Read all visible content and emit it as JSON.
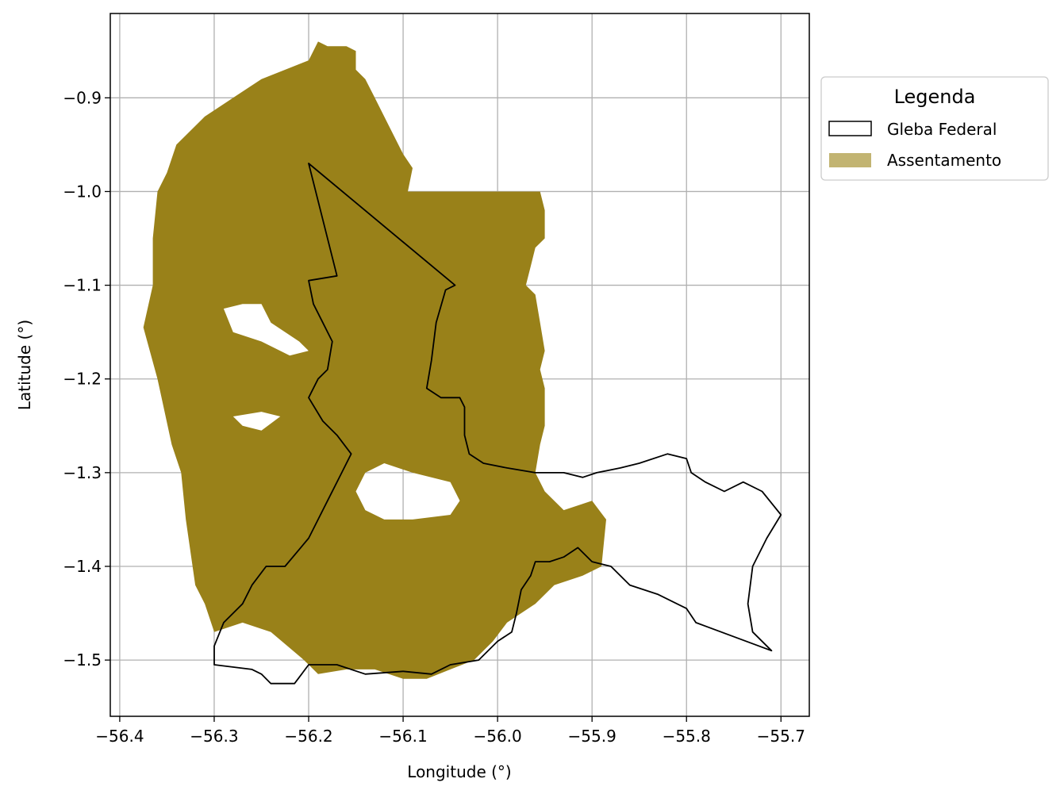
{
  "chart_data": {
    "type": "map",
    "title": "",
    "xlabel": "Longitude (°)",
    "ylabel": "Latitude (°)",
    "xlim": [
      -56.41,
      -55.67
    ],
    "ylim": [
      -1.56,
      -0.81
    ],
    "grid": true,
    "x_ticks": [
      -56.4,
      -56.3,
      -56.2,
      -56.1,
      -56.0,
      -55.9,
      -55.8,
      -55.7
    ],
    "x_tick_labels": [
      "−56.4",
      "−56.3",
      "−56.2",
      "−56.1",
      "−56.0",
      "−55.9",
      "−55.8",
      "−55.7"
    ],
    "y_ticks": [
      -0.9,
      -1.0,
      -1.1,
      -1.2,
      -1.3,
      -1.4,
      -1.5
    ],
    "y_tick_labels": [
      "−0.9",
      "−1.0",
      "−1.1",
      "−1.2",
      "−1.3",
      "−1.4",
      "−1.5"
    ],
    "legend": {
      "title": "Legenda",
      "placement": "outside-upper-right",
      "entries": [
        {
          "label": "Gleba Federal",
          "style": "outline",
          "color": "#000000"
        },
        {
          "label": "Assentamento",
          "style": "fill",
          "color": "#c2b472"
        }
      ]
    },
    "colors": {
      "assentamento_fill": "#998119",
      "gleba_outline": "#000000"
    },
    "layers": {
      "assentamento": [
        [
          [
            -56.19,
            -0.84
          ],
          [
            -56.18,
            -0.845
          ],
          [
            -56.16,
            -0.845
          ],
          [
            -56.15,
            -0.85
          ],
          [
            -56.15,
            -0.87
          ],
          [
            -56.14,
            -0.88
          ],
          [
            -56.13,
            -0.9
          ],
          [
            -56.115,
            -0.93
          ],
          [
            -56.1,
            -0.96
          ],
          [
            -56.09,
            -0.975
          ],
          [
            -56.095,
            -1.0
          ],
          [
            -55.955,
            -1.0
          ],
          [
            -55.95,
            -1.02
          ],
          [
            -55.95,
            -1.05
          ],
          [
            -55.96,
            -1.06
          ],
          [
            -55.965,
            -1.08
          ],
          [
            -55.97,
            -1.1
          ],
          [
            -55.96,
            -1.11
          ],
          [
            -55.955,
            -1.14
          ],
          [
            -55.95,
            -1.17
          ],
          [
            -55.955,
            -1.19
          ],
          [
            -55.95,
            -1.21
          ],
          [
            -55.95,
            -1.25
          ],
          [
            -55.955,
            -1.27
          ],
          [
            -55.96,
            -1.3
          ],
          [
            -55.95,
            -1.32
          ],
          [
            -55.93,
            -1.34
          ],
          [
            -55.9,
            -1.33
          ],
          [
            -55.885,
            -1.35
          ],
          [
            -55.89,
            -1.4
          ],
          [
            -55.91,
            -1.41
          ],
          [
            -55.94,
            -1.42
          ],
          [
            -55.96,
            -1.44
          ],
          [
            -55.99,
            -1.46
          ],
          [
            -56.005,
            -1.48
          ],
          [
            -56.025,
            -1.5
          ],
          [
            -56.05,
            -1.51
          ],
          [
            -56.075,
            -1.52
          ],
          [
            -56.1,
            -1.52
          ],
          [
            -56.13,
            -1.51
          ],
          [
            -56.16,
            -1.51
          ],
          [
            -56.19,
            -1.515
          ],
          [
            -56.205,
            -1.5
          ],
          [
            -56.24,
            -1.47
          ],
          [
            -56.27,
            -1.46
          ],
          [
            -56.3,
            -1.47
          ],
          [
            -56.31,
            -1.44
          ],
          [
            -56.32,
            -1.42
          ],
          [
            -56.33,
            -1.35
          ],
          [
            -56.335,
            -1.3
          ],
          [
            -56.345,
            -1.27
          ],
          [
            -56.36,
            -1.2
          ],
          [
            -56.375,
            -1.145
          ],
          [
            -56.365,
            -1.1
          ],
          [
            -56.365,
            -1.05
          ],
          [
            -56.36,
            -1.0
          ],
          [
            -56.35,
            -0.98
          ],
          [
            -56.34,
            -0.95
          ],
          [
            -56.31,
            -0.92
          ],
          [
            -56.28,
            -0.9
          ],
          [
            -56.25,
            -0.88
          ],
          [
            -56.2,
            -0.86
          ]
        ]
      ],
      "assentamento_holes": [
        [
          [
            -56.29,
            -1.125
          ],
          [
            -56.27,
            -1.12
          ],
          [
            -56.25,
            -1.12
          ],
          [
            -56.24,
            -1.14
          ],
          [
            -56.21,
            -1.16
          ],
          [
            -56.2,
            -1.17
          ],
          [
            -56.22,
            -1.175
          ],
          [
            -56.25,
            -1.16
          ],
          [
            -56.28,
            -1.15
          ]
        ],
        [
          [
            -56.15,
            -1.32
          ],
          [
            -56.14,
            -1.3
          ],
          [
            -56.12,
            -1.29
          ],
          [
            -56.09,
            -1.3
          ],
          [
            -56.05,
            -1.31
          ],
          [
            -56.04,
            -1.33
          ],
          [
            -56.05,
            -1.345
          ],
          [
            -56.09,
            -1.35
          ],
          [
            -56.12,
            -1.35
          ],
          [
            -56.14,
            -1.34
          ]
        ],
        [
          [
            -56.28,
            -1.24
          ],
          [
            -56.25,
            -1.235
          ],
          [
            -56.23,
            -1.24
          ],
          [
            -56.25,
            -1.255
          ],
          [
            -56.27,
            -1.25
          ]
        ]
      ],
      "gleba_federal": [
        [
          [
            -56.2,
            -0.97
          ],
          [
            -56.045,
            -1.1
          ],
          [
            -56.055,
            -1.105
          ],
          [
            -56.065,
            -1.14
          ],
          [
            -56.07,
            -1.18
          ],
          [
            -56.075,
            -1.21
          ],
          [
            -56.06,
            -1.22
          ],
          [
            -56.04,
            -1.22
          ],
          [
            -56.035,
            -1.23
          ],
          [
            -56.035,
            -1.26
          ],
          [
            -56.03,
            -1.28
          ],
          [
            -56.015,
            -1.29
          ],
          [
            -55.99,
            -1.295
          ],
          [
            -55.96,
            -1.3
          ],
          [
            -55.93,
            -1.3
          ],
          [
            -55.91,
            -1.305
          ],
          [
            -55.895,
            -1.3
          ],
          [
            -55.87,
            -1.295
          ],
          [
            -55.85,
            -1.29
          ],
          [
            -55.82,
            -1.28
          ],
          [
            -55.8,
            -1.285
          ],
          [
            -55.795,
            -1.3
          ],
          [
            -55.78,
            -1.31
          ],
          [
            -55.76,
            -1.32
          ],
          [
            -55.74,
            -1.31
          ],
          [
            -55.72,
            -1.32
          ],
          [
            -55.7,
            -1.345
          ],
          [
            -55.715,
            -1.37
          ],
          [
            -55.73,
            -1.4
          ],
          [
            -55.735,
            -1.44
          ],
          [
            -55.73,
            -1.47
          ],
          [
            -55.71,
            -1.49
          ],
          [
            -55.79,
            -1.46
          ],
          [
            -55.8,
            -1.445
          ],
          [
            -55.83,
            -1.43
          ],
          [
            -55.86,
            -1.42
          ],
          [
            -55.88,
            -1.4
          ],
          [
            -55.9,
            -1.395
          ],
          [
            -55.915,
            -1.38
          ],
          [
            -55.93,
            -1.39
          ],
          [
            -55.945,
            -1.395
          ],
          [
            -55.96,
            -1.395
          ],
          [
            -55.965,
            -1.41
          ],
          [
            -55.975,
            -1.425
          ],
          [
            -55.98,
            -1.45
          ],
          [
            -55.985,
            -1.47
          ],
          [
            -56.0,
            -1.48
          ],
          [
            -56.02,
            -1.5
          ],
          [
            -56.05,
            -1.505
          ],
          [
            -56.07,
            -1.515
          ],
          [
            -56.1,
            -1.512
          ],
          [
            -56.14,
            -1.515
          ],
          [
            -56.17,
            -1.505
          ],
          [
            -56.2,
            -1.505
          ],
          [
            -56.215,
            -1.525
          ],
          [
            -56.24,
            -1.525
          ],
          [
            -56.25,
            -1.515
          ],
          [
            -56.26,
            -1.51
          ],
          [
            -56.3,
            -1.505
          ],
          [
            -56.3,
            -1.485
          ],
          [
            -56.29,
            -1.46
          ],
          [
            -56.27,
            -1.44
          ],
          [
            -56.26,
            -1.42
          ],
          [
            -56.245,
            -1.4
          ],
          [
            -56.225,
            -1.4
          ],
          [
            -56.2,
            -1.37
          ],
          [
            -56.18,
            -1.33
          ],
          [
            -56.165,
            -1.3
          ],
          [
            -56.155,
            -1.28
          ],
          [
            -56.17,
            -1.26
          ],
          [
            -56.185,
            -1.245
          ],
          [
            -56.2,
            -1.22
          ],
          [
            -56.19,
            -1.2
          ],
          [
            -56.18,
            -1.19
          ],
          [
            -56.175,
            -1.16
          ],
          [
            -56.185,
            -1.14
          ],
          [
            -56.195,
            -1.12
          ],
          [
            -56.2,
            -1.095
          ],
          [
            -56.17,
            -1.09
          ]
        ]
      ]
    }
  }
}
